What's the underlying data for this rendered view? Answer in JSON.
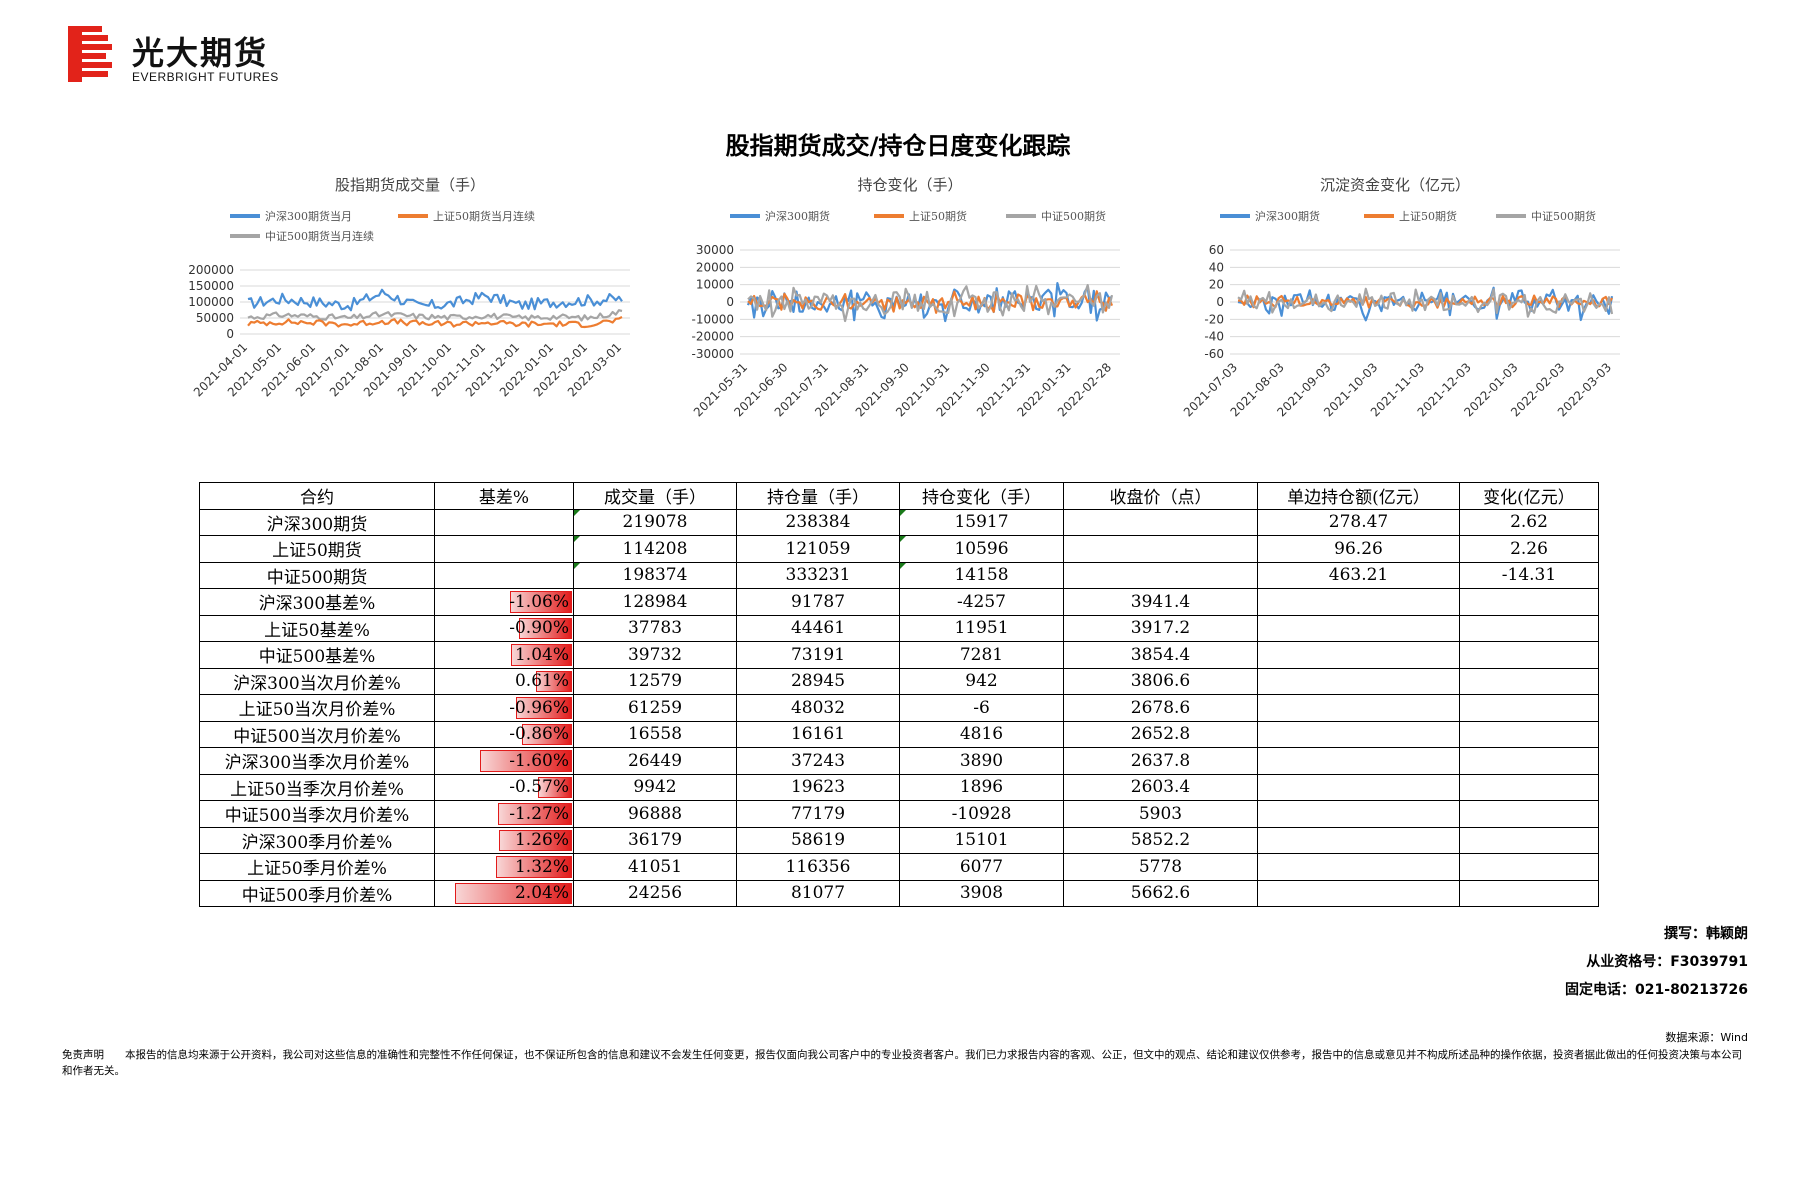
{
  "brand": {
    "name_cn": "光大期货",
    "name_en": "EVERBRIGHT FUTURES",
    "color": "#e2231a"
  },
  "title": "股指期货成交/持仓日度变化跟踪",
  "charts": [
    {
      "id": "volume",
      "chart_data": {
        "type": "line",
        "title": "股指期货成交量（手）",
        "x": [
          "2021-04-01",
          "2021-05-01",
          "2021-06-01",
          "2021-07-01",
          "2021-08-01",
          "2021-09-01",
          "2021-10-01",
          "2021-11-01",
          "2021-12-01",
          "2022-01-01",
          "2022-02-01",
          "2022-03-01"
        ],
        "ylim": [
          0,
          200000
        ],
        "yticks": [
          0,
          50000,
          100000,
          150000,
          200000
        ],
        "grid": true,
        "legend": "top",
        "series": [
          {
            "name": "沪深300期货当月",
            "color": "#4a8fd6",
            "values": [
              95000,
              110000,
              100000,
              90000,
              130000,
              85000,
              95000,
              120000,
              90000,
              100000,
              105000,
              110000
            ]
          },
          {
            "name": "上证50期货当月连续",
            "color": "#ed7d31",
            "values": [
              32000,
              38000,
              35000,
              30000,
              40000,
              33000,
              31000,
              36000,
              30000,
              32000,
              30000,
              45000
            ]
          },
          {
            "name": "中证500期货当月连续",
            "color": "#a5a5a5",
            "values": [
              52000,
              60000,
              55000,
              50000,
              62000,
              55000,
              52000,
              58000,
              50000,
              54000,
              50000,
              70000
            ]
          }
        ]
      }
    },
    {
      "id": "oi-change",
      "chart_data": {
        "type": "line",
        "title": "持仓变化（手）",
        "x": [
          "2021-05-31",
          "2021-06-30",
          "2021-07-31",
          "2021-08-31",
          "2021-09-30",
          "2021-10-31",
          "2021-11-30",
          "2021-12-31",
          "2022-01-31",
          "2022-02-28"
        ],
        "ylim": [
          -30000,
          30000
        ],
        "yticks": [
          -30000,
          -20000,
          -10000,
          0,
          10000,
          20000,
          30000
        ],
        "grid": true,
        "legend": "top",
        "series": [
          {
            "name": "沪深300期货",
            "color": "#4a8fd6",
            "values": [
              5000,
              -12000,
              15000,
              -8000,
              10000,
              -15000,
              8000,
              -6000,
              12000,
              -10000
            ]
          },
          {
            "name": "上证50期货",
            "color": "#ed7d31",
            "values": [
              2000,
              -4000,
              5000,
              -3000,
              4000,
              -6000,
              3000,
              -2000,
              5000,
              -3000
            ]
          },
          {
            "name": "中证500期货",
            "color": "#a5a5a5",
            "values": [
              4000,
              -8000,
              10000,
              -6000,
              8000,
              -9000,
              6000,
              -5000,
              9000,
              -7000
            ]
          }
        ]
      }
    },
    {
      "id": "capital-change",
      "chart_data": {
        "type": "line",
        "title": "沉淀资金变化（亿元）",
        "x": [
          "2021-07-03",
          "2021-08-03",
          "2021-09-03",
          "2021-10-03",
          "2021-11-03",
          "2021-12-03",
          "2022-01-03",
          "2022-02-03",
          "2022-03-03"
        ],
        "ylim": [
          -60,
          60
        ],
        "yticks": [
          -60,
          -40,
          -20,
          0,
          20,
          40,
          60
        ],
        "grid": true,
        "legend": "top",
        "series": [
          {
            "name": "沪深300期货",
            "color": "#4a8fd6",
            "values": [
              10,
              -15,
              20,
              -10,
              15,
              -20,
              12,
              -8,
              5
            ]
          },
          {
            "name": "上证50期货",
            "color": "#ed7d31",
            "values": [
              3,
              -5,
              6,
              -4,
              5,
              -6,
              4,
              -3,
              2
            ]
          },
          {
            "name": "中证500期货",
            "color": "#a5a5a5",
            "values": [
              8,
              -12,
              15,
              -18,
              10,
              -14,
              9,
              -10,
              3
            ]
          }
        ]
      }
    }
  ],
  "table": {
    "headers": [
      "合约",
      "基差%",
      "成交量（手）",
      "持仓量（手）",
      "持仓变化（手）",
      "收盘价（点）",
      "单边持仓额(亿元）",
      "变化(亿元）"
    ],
    "rows": [
      {
        "name": "沪深300期货",
        "basis": "",
        "basis_num": null,
        "volume": "219078",
        "oi": "238384",
        "oi_change": "15917",
        "close": "",
        "notional": "278.47",
        "notional_change": "2.62"
      },
      {
        "name": "上证50期货",
        "basis": "",
        "basis_num": null,
        "volume": "114208",
        "oi": "121059",
        "oi_change": "10596",
        "close": "",
        "notional": "96.26",
        "notional_change": "2.26"
      },
      {
        "name": "中证500期货",
        "basis": "",
        "basis_num": null,
        "volume": "198374",
        "oi": "333231",
        "oi_change": "14158",
        "close": "",
        "notional": "463.21",
        "notional_change": "-14.31"
      },
      {
        "name": "沪深300基差%",
        "basis": "-1.06%",
        "basis_num": -1.06,
        "volume": "128984",
        "oi": "91787",
        "oi_change": "-4257",
        "close": "3941.4",
        "notional": "",
        "notional_change": ""
      },
      {
        "name": "上证50基差%",
        "basis": "-0.90%",
        "basis_num": -0.9,
        "volume": "37783",
        "oi": "44461",
        "oi_change": "11951",
        "close": "3917.2",
        "notional": "",
        "notional_change": ""
      },
      {
        "name": "中证500基差%",
        "basis": "1.04%",
        "basis_num": 1.04,
        "volume": "39732",
        "oi": "73191",
        "oi_change": "7281",
        "close": "3854.4",
        "notional": "",
        "notional_change": ""
      },
      {
        "name": "沪深300当次月价差%",
        "basis": "0.61%",
        "basis_num": 0.61,
        "volume": "12579",
        "oi": "28945",
        "oi_change": "942",
        "close": "3806.6",
        "notional": "",
        "notional_change": ""
      },
      {
        "name": "上证50当次月价差%",
        "basis": "-0.96%",
        "basis_num": -0.96,
        "volume": "61259",
        "oi": "48032",
        "oi_change": "-6",
        "close": "2678.6",
        "notional": "",
        "notional_change": ""
      },
      {
        "name": "中证500当次月价差%",
        "basis": "-0.86%",
        "basis_num": -0.86,
        "volume": "16558",
        "oi": "16161",
        "oi_change": "4816",
        "close": "2652.8",
        "notional": "",
        "notional_change": ""
      },
      {
        "name": "沪深300当季次月价差%",
        "basis": "-1.60%",
        "basis_num": -1.6,
        "volume": "26449",
        "oi": "37243",
        "oi_change": "3890",
        "close": "2637.8",
        "notional": "",
        "notional_change": ""
      },
      {
        "name": "上证50当季次月价差%",
        "basis": "-0.57%",
        "basis_num": -0.57,
        "volume": "9942",
        "oi": "19623",
        "oi_change": "1896",
        "close": "2603.4",
        "notional": "",
        "notional_change": ""
      },
      {
        "name": "中证500当季次月价差%",
        "basis": "-1.27%",
        "basis_num": -1.27,
        "volume": "96888",
        "oi": "77179",
        "oi_change": "-10928",
        "close": "5903",
        "notional": "",
        "notional_change": ""
      },
      {
        "name": "沪深300季月价差%",
        "basis": "1.26%",
        "basis_num": 1.26,
        "volume": "36179",
        "oi": "58619",
        "oi_change": "15101",
        "close": "5852.2",
        "notional": "",
        "notional_change": ""
      },
      {
        "name": "上证50季月价差%",
        "basis": "1.32%",
        "basis_num": 1.32,
        "volume": "41051",
        "oi": "116356",
        "oi_change": "6077",
        "close": "5778",
        "notional": "",
        "notional_change": ""
      },
      {
        "name": "中证500季月价差%",
        "basis": "2.04%",
        "basis_num": 2.04,
        "volume": "24256",
        "oi": "81077",
        "oi_change": "3908",
        "close": "5662.6",
        "notional": "",
        "notional_change": ""
      }
    ]
  },
  "author": {
    "line1": "撰写：韩颖朗",
    "line2": "从业资格号：F3039791",
    "line3": "固定电话：021-80213726"
  },
  "source": "数据来源：Wind",
  "disclaimer": "免责声明　　本报告的信息均来源于公开资料，我公司对这些信息的准确性和完整性不作任何保证，也不保证所包含的信息和建议不会发生任何变更，报告仅面向我公司客户中的专业投资者客户。我们已力求报告内容的客观、公正，但文中的观点、结论和建议仅供参考，报告中的信息或意见并不构成所述品种的操作依据，投资者据此做出的任何投资决策与本公司和作者无关。"
}
